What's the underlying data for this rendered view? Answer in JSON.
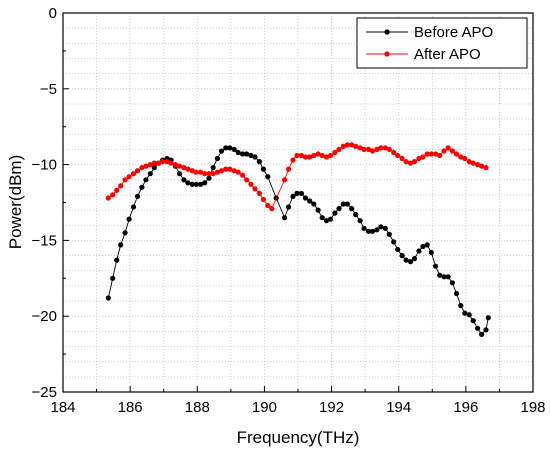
{
  "chart_data": {
    "type": "line",
    "title": "",
    "xlabel": "Frequency(THz)",
    "ylabel": "Power(dBm)",
    "xlim": [
      184,
      198
    ],
    "ylim": [
      -25,
      0
    ],
    "x_ticks": [
      184,
      186,
      188,
      190,
      192,
      194,
      196,
      198
    ],
    "x_tick_labels": [
      "184",
      "186",
      "188",
      "190",
      "192",
      "194",
      "196",
      "198"
    ],
    "y_ticks": [
      0,
      -5,
      -10,
      -15,
      -20,
      -25
    ],
    "y_tick_labels": [
      "0",
      "−5",
      "−10",
      "−15",
      "−20",
      "−25"
    ],
    "grid": true,
    "legend_position": "top-right",
    "series": [
      {
        "name": "Before APO",
        "color": "#000000",
        "x": [
          185.35,
          185.48,
          185.6,
          185.72,
          185.85,
          185.97,
          186.1,
          186.22,
          186.35,
          186.47,
          186.6,
          186.72,
          186.85,
          186.97,
          187.1,
          187.22,
          187.35,
          187.47,
          187.6,
          187.72,
          187.85,
          187.97,
          188.1,
          188.22,
          188.35,
          188.47,
          188.6,
          188.72,
          188.85,
          188.97,
          189.1,
          189.22,
          189.35,
          189.47,
          189.6,
          189.72,
          189.85,
          189.97,
          190.1,
          190.35,
          190.6,
          190.72,
          190.85,
          190.97,
          191.1,
          191.22,
          191.35,
          191.47,
          191.6,
          191.72,
          191.85,
          191.97,
          192.1,
          192.22,
          192.35,
          192.47,
          192.6,
          192.72,
          192.85,
          192.97,
          193.1,
          193.22,
          193.35,
          193.47,
          193.6,
          193.72,
          193.85,
          193.97,
          194.1,
          194.22,
          194.35,
          194.47,
          194.6,
          194.72,
          194.85,
          194.97,
          195.1,
          195.22,
          195.35,
          195.47,
          195.6,
          195.72,
          195.85,
          195.97,
          196.1,
          196.22,
          196.35,
          196.47,
          196.6,
          196.67
        ],
        "values": [
          -18.8,
          -17.5,
          -16.3,
          -15.3,
          -14.5,
          -13.6,
          -12.8,
          -12.1,
          -11.5,
          -11.0,
          -10.6,
          -10.2,
          -9.9,
          -9.7,
          -9.6,
          -9.7,
          -10.1,
          -10.6,
          -11.0,
          -11.2,
          -11.3,
          -11.3,
          -11.3,
          -11.2,
          -10.9,
          -10.2,
          -9.6,
          -9.1,
          -8.9,
          -8.9,
          -9.0,
          -9.2,
          -9.3,
          -9.3,
          -9.4,
          -9.5,
          -9.8,
          -10.3,
          -10.8,
          -12.2,
          -13.5,
          -12.8,
          -12.1,
          -11.9,
          -11.9,
          -12.2,
          -12.4,
          -12.6,
          -13.0,
          -13.5,
          -13.7,
          -13.6,
          -13.2,
          -12.9,
          -12.6,
          -12.6,
          -12.9,
          -13.3,
          -13.7,
          -14.2,
          -14.4,
          -14.4,
          -14.3,
          -14.1,
          -14.2,
          -14.6,
          -15.1,
          -15.6,
          -16.0,
          -16.3,
          -16.4,
          -16.2,
          -15.7,
          -15.4,
          -15.3,
          -15.8,
          -16.7,
          -17.3,
          -17.4,
          -17.4,
          -17.8,
          -18.5,
          -19.3,
          -19.8,
          -19.9,
          -20.3,
          -20.8,
          -21.2,
          -20.9,
          -20.1
        ]
      },
      {
        "name": "After APO",
        "color": "#ff0000",
        "x": [
          185.35,
          185.48,
          185.6,
          185.72,
          185.85,
          185.97,
          186.1,
          186.22,
          186.35,
          186.47,
          186.6,
          186.72,
          186.85,
          186.97,
          187.1,
          187.22,
          187.35,
          187.47,
          187.6,
          187.72,
          187.85,
          187.97,
          188.1,
          188.22,
          188.35,
          188.47,
          188.6,
          188.72,
          188.85,
          188.97,
          189.1,
          189.22,
          189.35,
          189.47,
          189.6,
          189.72,
          189.85,
          189.97,
          190.1,
          190.22,
          190.6,
          190.72,
          190.85,
          190.97,
          191.1,
          191.22,
          191.35,
          191.47,
          191.6,
          191.72,
          191.85,
          191.97,
          192.1,
          192.22,
          192.35,
          192.47,
          192.6,
          192.72,
          192.85,
          192.97,
          193.1,
          193.22,
          193.35,
          193.47,
          193.6,
          193.72,
          193.85,
          193.97,
          194.1,
          194.22,
          194.35,
          194.47,
          194.6,
          194.72,
          194.85,
          194.97,
          195.1,
          195.22,
          195.35,
          195.47,
          195.6,
          195.72,
          195.85,
          195.97,
          196.1,
          196.22,
          196.35,
          196.47,
          196.6
        ],
        "values": [
          -12.2,
          -12.0,
          -11.7,
          -11.4,
          -11.0,
          -10.8,
          -10.6,
          -10.4,
          -10.2,
          -10.1,
          -10.0,
          -9.9,
          -9.9,
          -9.8,
          -9.8,
          -9.9,
          -10.0,
          -10.1,
          -10.2,
          -10.3,
          -10.4,
          -10.5,
          -10.5,
          -10.6,
          -10.6,
          -10.6,
          -10.5,
          -10.4,
          -10.3,
          -10.3,
          -10.4,
          -10.5,
          -10.7,
          -11.0,
          -11.3,
          -11.6,
          -11.9,
          -12.3,
          -12.7,
          -12.9,
          -11.0,
          -10.3,
          -9.7,
          -9.4,
          -9.4,
          -9.5,
          -9.5,
          -9.4,
          -9.3,
          -9.4,
          -9.5,
          -9.4,
          -9.2,
          -9.0,
          -8.8,
          -8.7,
          -8.7,
          -8.8,
          -8.9,
          -9.0,
          -9.0,
          -9.1,
          -9.0,
          -8.9,
          -8.9,
          -9.0,
          -9.2,
          -9.4,
          -9.6,
          -9.8,
          -9.9,
          -9.8,
          -9.6,
          -9.5,
          -9.3,
          -9.3,
          -9.3,
          -9.4,
          -9.1,
          -8.9,
          -9.1,
          -9.3,
          -9.5,
          -9.6,
          -9.8,
          -9.9,
          -10.0,
          -10.1,
          -10.2
        ]
      }
    ]
  }
}
